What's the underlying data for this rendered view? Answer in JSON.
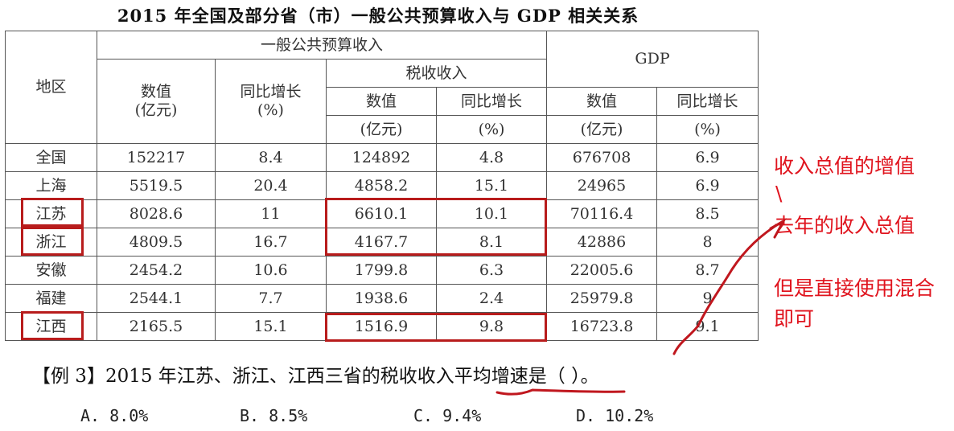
{
  "title": "2015 年全国及部分省（市）一般公共预算收入与 GDP 相关关系",
  "headers": {
    "region": "地区",
    "general_budget": "一般公共预算收入",
    "tax_revenue": "税收收入",
    "gdp": "GDP",
    "value": "数值",
    "unit_yiyuan": "(亿元)",
    "yoy_growth": "同比增长",
    "unit_percent": "(%)"
  },
  "rows": [
    {
      "region": "全国",
      "budget_value": "152217",
      "budget_growth": "8.4",
      "tax_value": "124892",
      "tax_growth": "4.8",
      "gdp_value": "676708",
      "gdp_growth": "6.9"
    },
    {
      "region": "上海",
      "budget_value": "5519.5",
      "budget_growth": "20.4",
      "tax_value": "4858.2",
      "tax_growth": "15.1",
      "gdp_value": "24965",
      "gdp_growth": "6.9"
    },
    {
      "region": "江苏",
      "budget_value": "8028.6",
      "budget_growth": "11",
      "tax_value": "6610.1",
      "tax_growth": "10.1",
      "gdp_value": "70116.4",
      "gdp_growth": "8.5"
    },
    {
      "region": "浙江",
      "budget_value": "4809.5",
      "budget_growth": "16.7",
      "tax_value": "4167.7",
      "tax_growth": "8.1",
      "gdp_value": "42886",
      "gdp_growth": "8"
    },
    {
      "region": "安徽",
      "budget_value": "2454.2",
      "budget_growth": "10.6",
      "tax_value": "1799.8",
      "tax_growth": "6.3",
      "gdp_value": "22005.6",
      "gdp_growth": "8.7"
    },
    {
      "region": "福建",
      "budget_value": "2544.1",
      "budget_growth": "7.7",
      "tax_value": "1938.6",
      "tax_growth": "2.4",
      "gdp_value": "25979.8",
      "gdp_growth": "9"
    },
    {
      "region": "江西",
      "budget_value": "2165.5",
      "budget_growth": "15.1",
      "tax_value": "1516.9",
      "tax_growth": "9.8",
      "gdp_value": "16723.8",
      "gdp_growth": "9.1"
    }
  ],
  "annotations": {
    "line1": "收入总值的增值",
    "line2": "\\",
    "line3": "去年的收入总值",
    "line4": "但是直接使用混合",
    "line5": "即可"
  },
  "question": "【例 3】2015 年江苏、浙江、江西三省的税收收入平均增速是（     ）。",
  "options": [
    "A. 8.0%",
    "B. 8.5%",
    "C. 9.4%",
    "D. 10.2%"
  ],
  "colors": {
    "annotation_red": "#e0141e",
    "box_red": "#b81c1c"
  }
}
